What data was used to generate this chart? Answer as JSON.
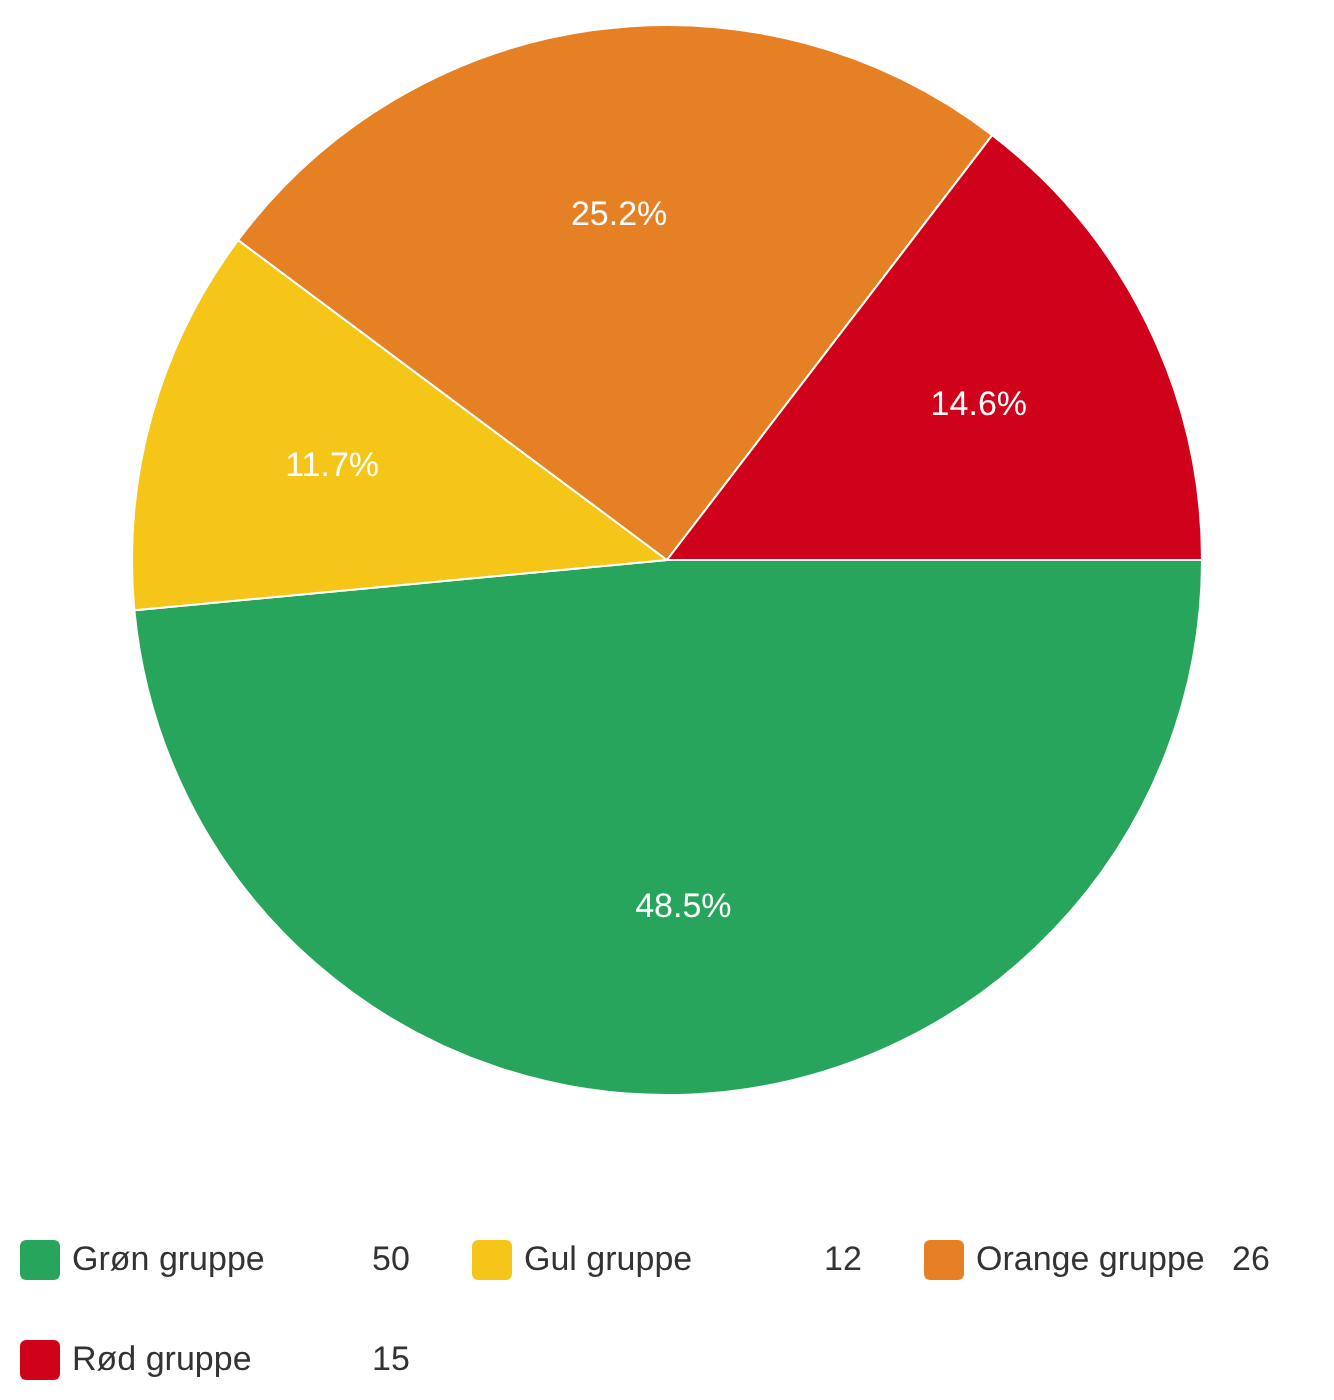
{
  "chart_data": {
    "type": "pie",
    "categories": [
      "Grøn gruppe",
      "Gul gruppe",
      "Orange gruppe",
      "Rød gruppe"
    ],
    "values": [
      48.5,
      11.7,
      25.2,
      14.6
    ],
    "colors": [
      "#27a55c",
      "#f5c518",
      "#e68024",
      "#d0021b"
    ],
    "value_labels": [
      "48.5%",
      "11.7%",
      "25.2%",
      "14.6%"
    ],
    "annotations": [
      "50",
      "12",
      "26",
      "15"
    ],
    "legend": "bottom"
  }
}
